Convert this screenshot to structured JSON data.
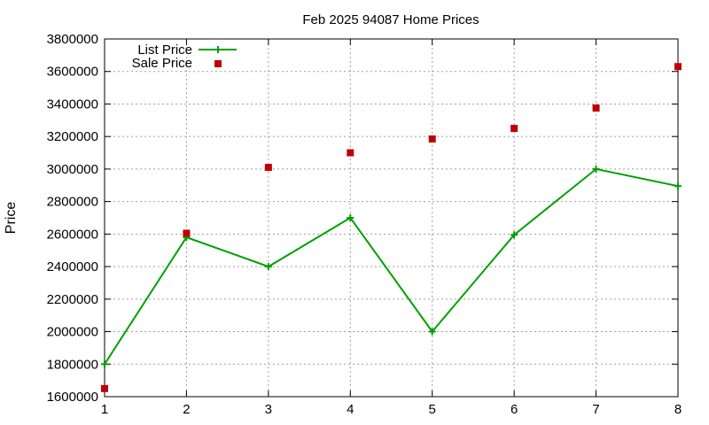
{
  "chart_data": {
    "type": "line",
    "title": "Feb 2025 94087 Home Prices",
    "xlabel": "",
    "ylabel": "Price",
    "x": [
      1,
      2,
      3,
      4,
      5,
      6,
      7,
      8
    ],
    "xlim": [
      1,
      8
    ],
    "ylim": [
      1600000,
      3800000
    ],
    "xticks": [
      "1",
      "2",
      "3",
      "4",
      "5",
      "6",
      "7",
      "8"
    ],
    "yticks": [
      "1600000",
      "1800000",
      "2000000",
      "2200000",
      "2400000",
      "2600000",
      "2800000",
      "3000000",
      "3200000",
      "3400000",
      "3600000",
      "3800000"
    ],
    "grid": true,
    "legend_position": "top-left",
    "series": [
      {
        "name": "List Price",
        "style": "linespoints",
        "color": "#00a000",
        "values": [
          1800000,
          2580000,
          2400000,
          2700000,
          2000000,
          2595000,
          3000000,
          2895000
        ]
      },
      {
        "name": "Sale Price",
        "style": "points",
        "color": "#c00000",
        "values": [
          1650000,
          2605000,
          3010000,
          3100000,
          3185000,
          3250000,
          3375000,
          3630000
        ]
      }
    ]
  }
}
